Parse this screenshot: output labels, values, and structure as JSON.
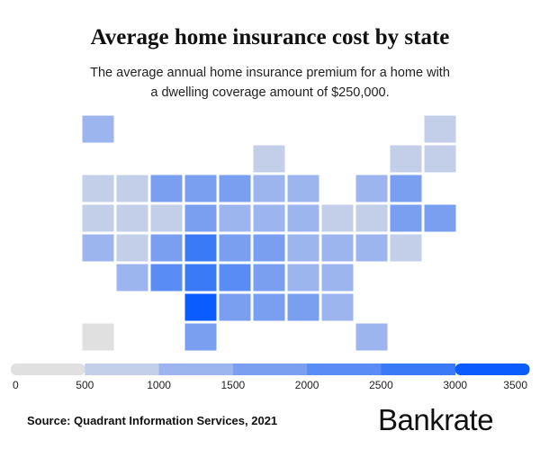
{
  "chart_data": {
    "type": "choropleth",
    "title": "Average home insurance cost by state",
    "subtitle": "The average annual home insurance premium for a home with a dwelling coverage amount of $250,000.",
    "values": [
      1100,
      900,
      900,
      800,
      800,
      800,
      800,
      1700,
      1800,
      1800,
      1200,
      1100,
      1000,
      1500,
      800,
      800,
      900,
      1800,
      1300,
      1200,
      1000,
      900,
      900,
      1500,
      1500,
      1300,
      800,
      1900,
      2700,
      1900,
      1600,
      1100,
      1200,
      1100,
      800,
      1300,
      2200,
      2700,
      2200,
      1600,
      1300,
      1300,
      3500,
      1900,
      1700,
      1700,
      1400,
      400,
      1900,
      1400
    ],
    "scale": {
      "ticks": [
        0,
        500,
        1000,
        1500,
        2000,
        2500,
        3000,
        3500
      ],
      "colors": [
        "#e0e0e0",
        "#c3cfe9",
        "#9db5ef",
        "#7a9ff0",
        "#5a8cf5",
        "#3a7af7",
        "#0a5cff"
      ]
    },
    "source": "Source: Quadrant Information Services, 2021",
    "brand": "Bankrate"
  }
}
